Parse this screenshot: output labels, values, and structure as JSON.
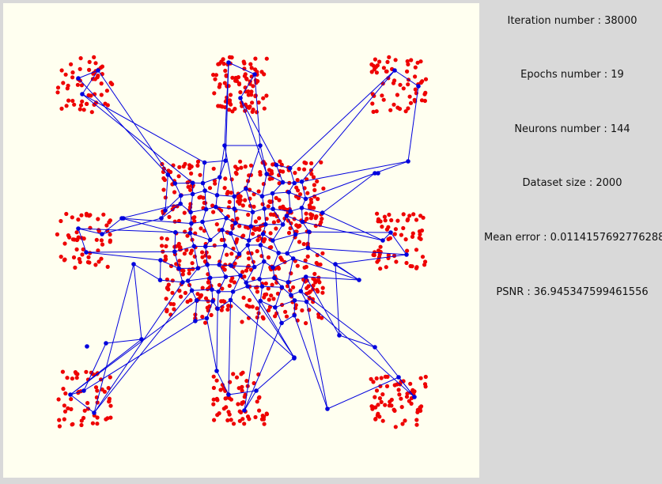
{
  "stats": {
    "iteration_label": "Iteration number : 38000",
    "epochs_label": "Epochs number : 19",
    "neurons_label": "Neurons number : 144",
    "dataset_label": "Dataset size : 2000",
    "mean_error_label": "Mean error : 0.0114157692776288",
    "psnr_label": "PSNR : 36.945347599461556"
  },
  "colors": {
    "canvas_background": "#fffff0",
    "panel_background": "#d9d9d9",
    "data_point": "#ee0000",
    "neuron": "#0000dd",
    "link": "#0000dd"
  }
}
